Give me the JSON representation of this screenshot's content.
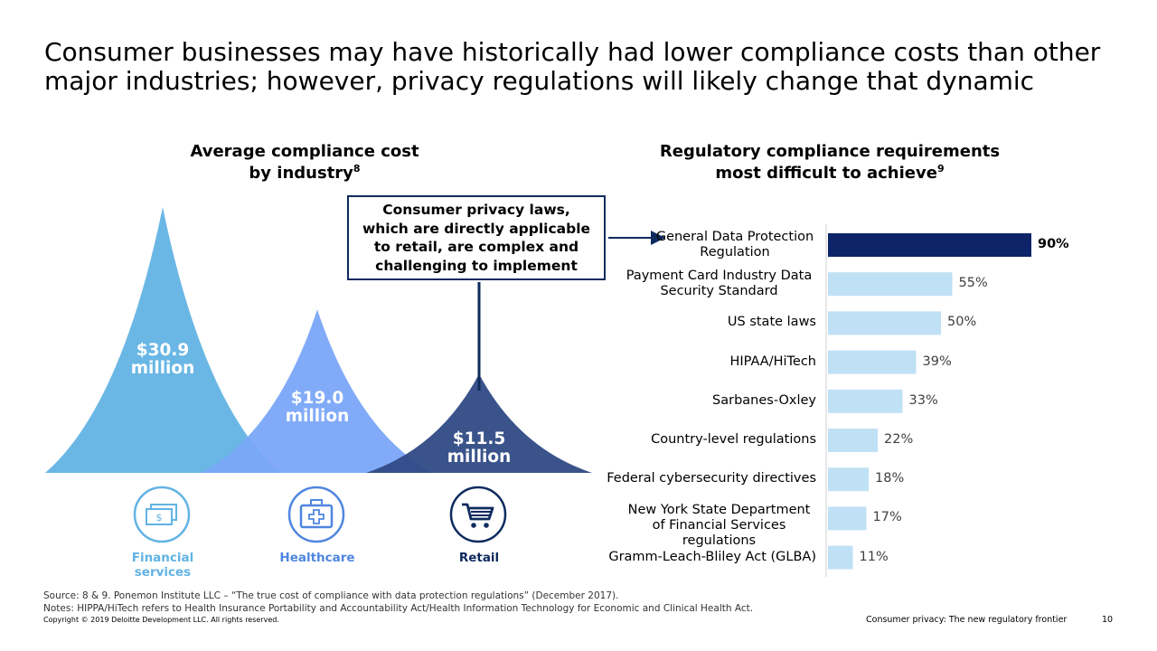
{
  "title": "Consumer businesses may have historically had lower compliance costs than other major industries; however, privacy regulations will likely change that dynamic",
  "left_section": {
    "title_line1": "Average compliance cost",
    "title_line2": "by industry",
    "title_sup": "8",
    "callout": "Consumer privacy laws, which are directly applicable to retail, are complex and challenging to implement"
  },
  "right_section": {
    "title_line1": "Regulatory compliance requirements",
    "title_line2": "most difficult to achieve",
    "title_sup": "9"
  },
  "industries": [
    {
      "name": "Financial services",
      "value_line1": "$30.9",
      "value_line2": "million",
      "icon": "money-icon",
      "color": "#62b3e4",
      "label_color": "#62b3e4"
    },
    {
      "name": "Healthcare",
      "value_line1": "$19.0",
      "value_line2": "million",
      "icon": "medical-kit-icon",
      "color": "#7aa6f8",
      "label_color": "#4f86e0"
    },
    {
      "name": "Retail",
      "value_line1": "$11.5",
      "value_line2": "million",
      "icon": "shopping-cart-icon",
      "color": "#2f4a85",
      "label_color": "#0d2b5e"
    }
  ],
  "chart_data": [
    {
      "type": "area",
      "title": "Average compliance cost by industry",
      "categories": [
        "Financial services",
        "Healthcare",
        "Retail"
      ],
      "values": [
        30.9,
        19.0,
        11.5
      ],
      "unit": "$ million"
    },
    {
      "type": "bar",
      "orientation": "horizontal",
      "title": "Regulatory compliance requirements most difficult to achieve",
      "categories": [
        "General Data Protection Regulation",
        "Payment Card Industry Data Security Standard",
        "US state laws",
        "HIPAA/HiTech",
        "Sarbanes-Oxley",
        "Country-level regulations",
        "Federal cybersecurity directives",
        "New York State Department of Financial Services regulations",
        "Gramm-Leach-Bliley Act (GLBA)"
      ],
      "values": [
        90,
        55,
        50,
        39,
        33,
        22,
        18,
        17,
        11
      ],
      "value_labels": [
        "90%",
        "55%",
        "50%",
        "39%",
        "33%",
        "22%",
        "18%",
        "17%",
        "11%"
      ],
      "highlight_index": 0,
      "colors": {
        "highlight": "#0d2468",
        "default": "#c0e0f5"
      },
      "xlim": [
        0,
        100
      ]
    }
  ],
  "footer": {
    "source": "Source: 8 & 9. Ponemon Institute LLC – “The true cost of compliance with data protection regulations” (December 2017).",
    "notes": "Notes: HIPPA/HiTech refers to Health Insurance Portability and Accountability Act/Health Information Technology for Economic and Clinical Health Act.",
    "copyright": "Copyright © 2019 Deloitte Development LLC. All rights reserved.",
    "doc_title": "Consumer privacy: The new regulatory frontier",
    "page_number": "10"
  }
}
